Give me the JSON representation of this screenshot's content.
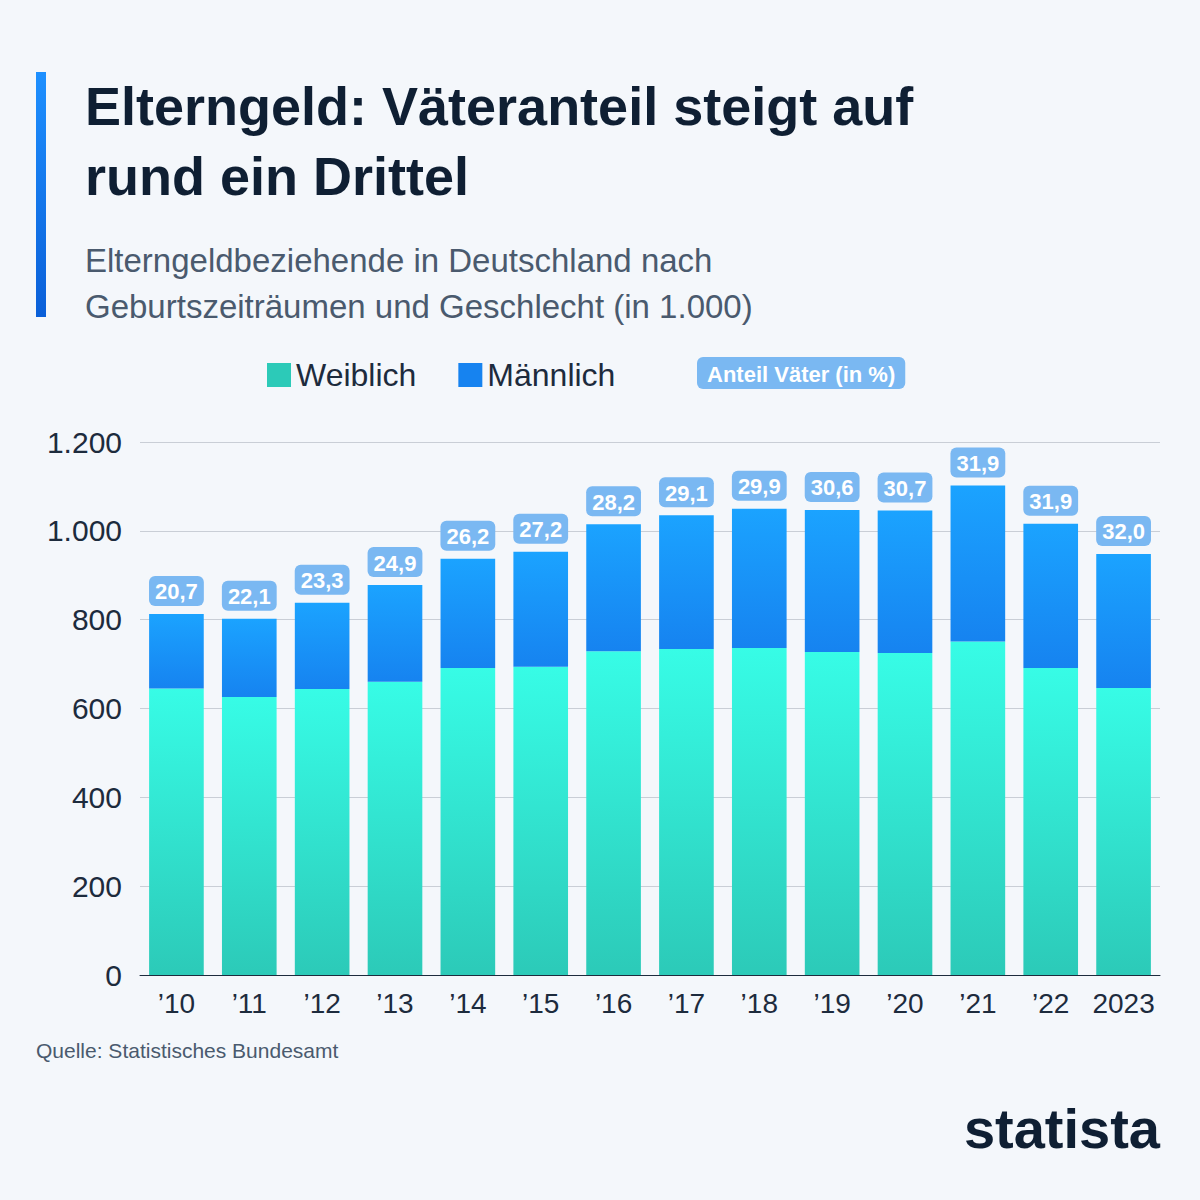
{
  "chart_data": {
    "type": "bar",
    "title": "Elterngeld: Väteranteil steigt auf rund ein Drittel",
    "subtitle": "Elterngeldbeziehende in Deutschland nach Geburtszeiträumen und Geschlecht (in 1.000)",
    "categories": [
      "’10",
      "’11",
      "’12",
      "’13",
      "’14",
      "’15",
      "’16",
      "’17",
      "’18",
      "’19",
      "’20",
      "’21",
      "’22",
      "2023"
    ],
    "series": [
      {
        "name": "Weiblich",
        "color": "#2ccab8",
        "values": [
          645,
          626,
          644,
          660,
          691,
          694,
          729,
          734,
          736,
          727,
          725,
          751,
          691,
          646
        ]
      },
      {
        "name": "Männlich",
        "color": "#1683f0",
        "values": [
          168,
          176,
          194,
          218,
          246,
          259,
          286,
          301,
          314,
          320,
          321,
          351,
          325,
          302
        ]
      }
    ],
    "fathers_share": {
      "name": "Anteil Väter (in %)",
      "color": "#7ab8f2",
      "values": [
        20.7,
        22.1,
        23.3,
        24.9,
        26.2,
        27.2,
        28.2,
        29.1,
        29.9,
        30.6,
        30.7,
        31.9,
        31.9,
        32.0
      ],
      "value_labels": [
        "20,7",
        "22,1",
        "23,3",
        "24,9",
        "26,2",
        "27,2",
        "28,2",
        "29,1",
        "29,9",
        "30,6",
        "30,7",
        "31,9",
        "31,9",
        "32,0"
      ]
    },
    "stacked": true,
    "ylim": [
      0,
      1200
    ],
    "yticks": [
      0,
      200,
      400,
      600,
      800,
      {
        "value": 1000,
        "label": "1.000"
      },
      {
        "value": 1200,
        "label": "1.200"
      }
    ],
    "grid": true,
    "legend": "top",
    "source": "Quelle: Statistisches Bundesamt",
    "brand": "statista"
  }
}
